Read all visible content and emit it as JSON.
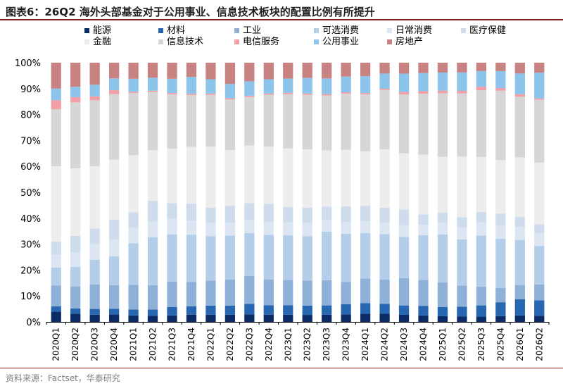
{
  "header": {
    "title": "图表6：26Q2 海外头部基金对于公用事业、信息技术板块的配置比例有所提升"
  },
  "footer": {
    "source": "资料来源：Factset，华泰研究"
  },
  "chart_data": {
    "type": "bar",
    "stacked": true,
    "percent": true,
    "categories": [
      "2020Q1",
      "2020Q2",
      "2020Q3",
      "2020Q4",
      "2021Q1",
      "2021Q2",
      "2021Q3",
      "2021Q4",
      "2022Q1",
      "2022Q2",
      "2022Q3",
      "2022Q4",
      "2023Q1",
      "2023Q2",
      "2023Q3",
      "2023Q4",
      "2024Q1",
      "2024Q2",
      "2024Q3",
      "2024Q4",
      "2025Q1",
      "2025Q2",
      "2025Q3",
      "2025Q4",
      "2026Q1",
      "2026Q2"
    ],
    "y_ticks": [
      "0%",
      "10%",
      "20%",
      "30%",
      "40%",
      "50%",
      "60%",
      "70%",
      "80%",
      "90%",
      "100%"
    ],
    "ylim": [
      0,
      100
    ],
    "legend_position": "top",
    "series": [
      {
        "name": "能源",
        "color": "#0b2b66",
        "values": [
          4.0,
          3.2,
          2.8,
          2.8,
          2.5,
          2.4,
          2.5,
          2.8,
          2.8,
          2.8,
          2.9,
          2.8,
          2.8,
          2.7,
          2.7,
          2.9,
          3.2,
          3.3,
          2.7,
          2.5,
          2.2,
          2.1,
          2.0,
          2.2,
          2.5,
          2.4
        ]
      },
      {
        "name": "材料",
        "color": "#2766b0",
        "values": [
          2.0,
          2.0,
          2.2,
          2.2,
          2.3,
          2.4,
          3.2,
          3.2,
          3.5,
          3.5,
          4.0,
          3.6,
          3.6,
          3.6,
          3.6,
          3.9,
          4.0,
          3.8,
          3.6,
          3.7,
          3.5,
          3.7,
          4.3,
          5.3,
          6.3,
          6.0
        ]
      },
      {
        "name": "工业",
        "color": "#8fb1d8",
        "values": [
          8.0,
          8.5,
          9.5,
          9.0,
          9.5,
          9.4,
          9.8,
          9.5,
          9.6,
          10.0,
          10.6,
          10.0,
          9.8,
          9.6,
          9.6,
          8.5,
          9.5,
          9.6,
          10.5,
          10.0,
          9.5,
          8.0,
          7.2,
          5.5,
          5.5,
          6.2
        ]
      },
      {
        "name": "可选消费",
        "color": "#b4ceea",
        "values": [
          7.0,
          7.5,
          9.5,
          11.0,
          16.0,
          18.5,
          18.3,
          18.2,
          17.2,
          17.0,
          16.4,
          17.2,
          17.2,
          17.2,
          18.6,
          18.4,
          17.6,
          18.0,
          15.8,
          17.3,
          18.5,
          17.5,
          19.5,
          18.8,
          17.5,
          15.0
        ]
      },
      {
        "name": "日常消费",
        "color": "#dbe6f2",
        "values": [
          5.0,
          5.5,
          6.0,
          6.5,
          6.0,
          6.0,
          6.0,
          5.5,
          5.0,
          5.0,
          5.0,
          5.0,
          5.0,
          5.0,
          4.5,
          4.5,
          4.5,
          4.5,
          4.5,
          4.0,
          4.5,
          4.5,
          5.0,
          5.0,
          5.0,
          5.0
        ]
      },
      {
        "name": "医疗保健",
        "color": "#cfdcec",
        "values": [
          5.0,
          6.5,
          6.0,
          7.5,
          6.0,
          8.0,
          6.0,
          6.5,
          6.0,
          6.5,
          6.5,
          7.0,
          6.0,
          6.0,
          5.0,
          6.0,
          6.0,
          6.0,
          6.0,
          4.0,
          4.0,
          4.0,
          4.0,
          4.5,
          4.0,
          3.5
        ]
      },
      {
        "name": "金融",
        "color": "#ededed",
        "values": [
          29.0,
          26.0,
          24.0,
          23.0,
          22.0,
          19.5,
          21.0,
          22.0,
          23.5,
          21.5,
          22.0,
          22.0,
          22.5,
          22.5,
          21.5,
          21.5,
          21.0,
          23.0,
          21.5,
          23.0,
          21.5,
          23.0,
          21.0,
          20.5,
          23.0,
          24.0
        ]
      },
      {
        "name": "信息技术",
        "color": "#d6d6d6",
        "values": [
          22.0,
          25.5,
          25.5,
          25.0,
          24.0,
          22.5,
          21.0,
          20.0,
          20.0,
          19.5,
          18.5,
          20.0,
          21.0,
          21.0,
          21.0,
          21.5,
          22.0,
          23.5,
          22.5,
          23.5,
          24.5,
          24.0,
          25.5,
          26.5,
          23.5,
          24.5
        ]
      },
      {
        "name": "电信服务",
        "color": "#f2a0a6",
        "values": [
          3.5,
          2.0,
          1.5,
          1.5,
          0.5,
          0.5,
          0.5,
          0.5,
          0.5,
          0.5,
          0.5,
          0.5,
          0.5,
          0.5,
          0.5,
          0.5,
          0.5,
          0.5,
          1.0,
          1.0,
          1.0,
          1.0,
          1.3,
          1.0,
          1.0,
          0.5
        ]
      },
      {
        "name": "公用事业",
        "color": "#8cc4ec",
        "values": [
          4.5,
          4.0,
          4.5,
          4.5,
          5.0,
          5.0,
          5.5,
          6.5,
          5.5,
          5.5,
          5.5,
          5.5,
          5.5,
          6.0,
          6.0,
          6.0,
          6.5,
          6.0,
          7.0,
          7.0,
          7.0,
          7.0,
          6.0,
          6.5,
          8.0,
          10.0
        ]
      },
      {
        "name": "房地产",
        "color": "#c98282",
        "values": [
          10.0,
          9.3,
          8.5,
          6.0,
          6.2,
          5.8,
          6.2,
          5.5,
          6.4,
          8.2,
          7.1,
          6.4,
          6.1,
          5.9,
          6.0,
          5.3,
          5.2,
          4.3,
          4.2,
          4.0,
          3.8,
          3.7,
          3.2,
          3.2,
          4.2,
          3.9
        ]
      }
    ]
  }
}
